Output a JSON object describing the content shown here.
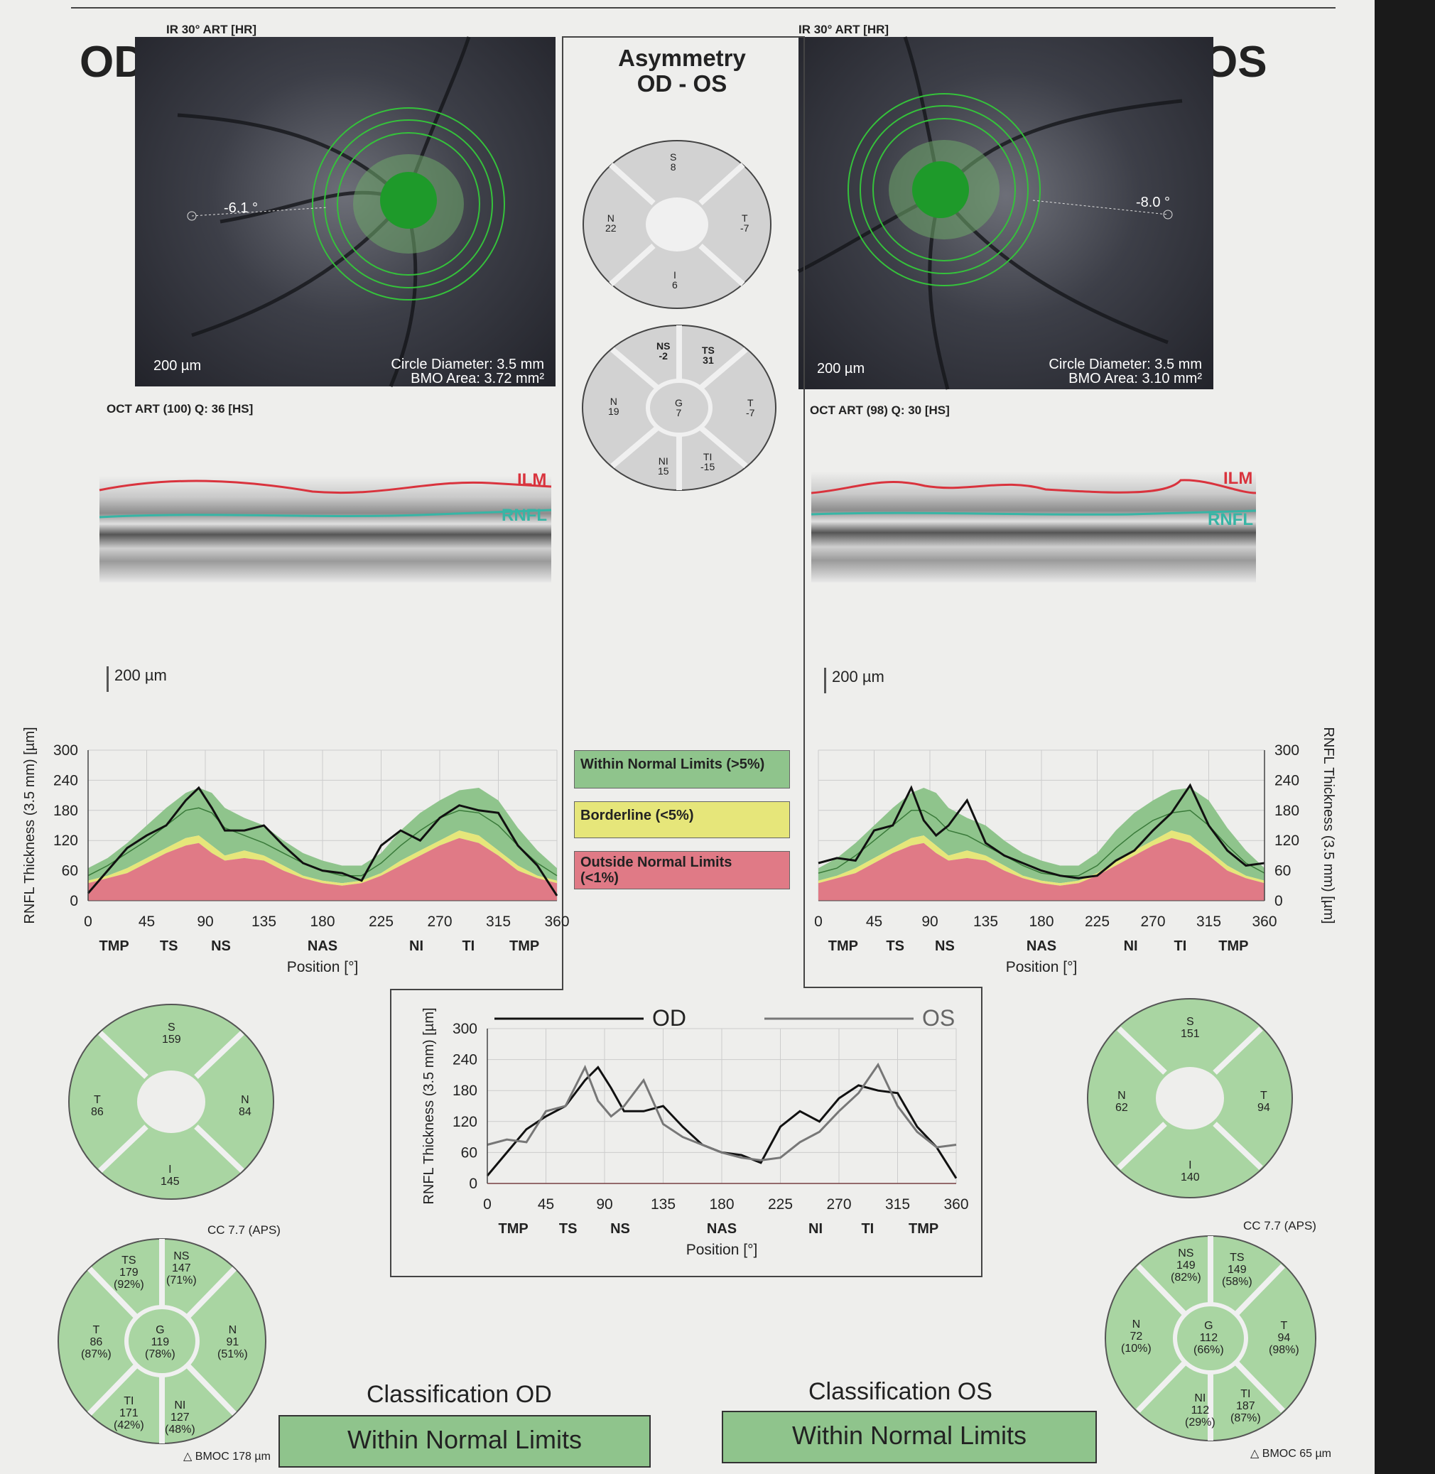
{
  "od": {
    "eye_label": "OD",
    "ir_header": "IR 30° ART [HR]",
    "angle": "-6.1 °",
    "scale": "200 µm",
    "circle_diameter": "Circle Diameter: 3.5 mm",
    "bmo_area": "BMO Area: 3.72 mm²",
    "oct_header": "OCT ART (100) Q: 36 [HS]",
    "ilm": "ILM",
    "rnfl": "RNFL",
    "bscan_scale": "200 µm",
    "sectors": {
      "S": "159",
      "T": "86",
      "N": "84",
      "I": "145"
    },
    "cc_label": "CC 7.7 (APS)",
    "sectors6": {
      "TS": [
        "TS",
        "179",
        "(92%)"
      ],
      "NS": [
        "NS",
        "147",
        "(71%)"
      ],
      "T": [
        "T",
        "86",
        "(87%)"
      ],
      "G": [
        "G",
        "119",
        "(78%)"
      ],
      "N": [
        "N",
        "91",
        "(51%)"
      ],
      "TI": [
        "TI",
        "171",
        "(42%)"
      ],
      "NI": [
        "NI",
        "127",
        "(48%)"
      ]
    },
    "bmoc": "BMOC 178 µm",
    "classification_title": "Classification OD",
    "classification": "Within Normal Limits"
  },
  "os": {
    "eye_label": "OS",
    "ir_header": "IR 30° ART [HR]",
    "angle": "-8.0 °",
    "scale": "200 µm",
    "circle_diameter": "Circle Diameter: 3.5 mm",
    "bmo_area": "BMO Area: 3.10 mm²",
    "oct_header": "OCT ART (98) Q: 30 [HS]",
    "ilm": "ILM",
    "rnfl": "RNFL",
    "bscan_scale": "200 µm",
    "sectors": {
      "S": "151",
      "N": "62",
      "T": "94",
      "I": "140"
    },
    "cc_label": "CC 7.7 (APS)",
    "sectors6": {
      "NS": [
        "NS",
        "149",
        "(82%)"
      ],
      "TS": [
        "TS",
        "149",
        "(58%)"
      ],
      "N": [
        "N",
        "72",
        "(10%)"
      ],
      "G": [
        "G",
        "112",
        "(66%)"
      ],
      "T": [
        "T",
        "94",
        "(98%)"
      ],
      "NI": [
        "NI",
        "112",
        "(29%)"
      ],
      "TI": [
        "TI",
        "187",
        "(87%)"
      ]
    },
    "bmoc": "BMOC 65 µm",
    "classification_title": "Classification OS",
    "classification": "Within Normal Limits"
  },
  "asymmetry": {
    "title_line1": "Asymmetry",
    "title_line2": "OD - OS",
    "sectors4": {
      "S": "8",
      "N": "22",
      "T": "-7",
      "I": "6"
    },
    "sectors6": {
      "NS": "-2",
      "TS": "31",
      "N": "19",
      "G": "7",
      "T": "-7",
      "NI": "15",
      "TI": "-15"
    }
  },
  "legend": {
    "within": "Within Normal Limits (>5%)",
    "borderline": "Borderline (<5%)",
    "outside_line1": "Outside Normal Limits",
    "outside_line2": "(<1%)"
  },
  "colors": {
    "within": "#8fc48c",
    "borderline": "#e6e67a",
    "outside": "#e07a86",
    "sector_fill": "#a9d5a2",
    "asym_fill": "#d2d2d2",
    "ilm": "#d9333d",
    "rnfl": "#37b5a5"
  },
  "chart_data": [
    {
      "type": "line",
      "id": "od",
      "ylabel": "RNFL Thickness (3.5 mm) [µm]",
      "xlabel": "Position [°]",
      "xlim": [
        0,
        360
      ],
      "ylim": [
        0,
        300
      ],
      "xticks": [
        0,
        45,
        90,
        135,
        180,
        225,
        270,
        315,
        360
      ],
      "yticks": [
        0,
        60,
        120,
        180,
        240,
        300
      ],
      "sector_labels": [
        {
          "label": "TMP",
          "x": 20
        },
        {
          "label": "TS",
          "x": 62
        },
        {
          "label": "NS",
          "x": 102
        },
        {
          "label": "NAS",
          "x": 180
        },
        {
          "label": "NI",
          "x": 252
        },
        {
          "label": "TI",
          "x": 292
        },
        {
          "label": "TMP",
          "x": 335
        }
      ],
      "x": [
        0,
        15,
        30,
        45,
        60,
        75,
        85,
        95,
        105,
        120,
        135,
        150,
        165,
        180,
        195,
        210,
        225,
        240,
        255,
        270,
        285,
        300,
        315,
        330,
        345,
        360
      ],
      "series": [
        {
          "values": [
            15,
            60,
            105,
            130,
            150,
            200,
            225,
            185,
            140,
            140,
            150,
            110,
            75,
            60,
            55,
            40,
            110,
            140,
            120,
            165,
            190,
            180,
            175,
            110,
            70,
            10
          ]
        }
      ],
      "norm_mean": [
        50,
        70,
        95,
        120,
        150,
        180,
        185,
        175,
        145,
        130,
        115,
        95,
        75,
        60,
        50,
        50,
        75,
        110,
        140,
        165,
        180,
        175,
        150,
        110,
        75,
        50
      ],
      "p5": [
        40,
        50,
        65,
        85,
        105,
        125,
        130,
        110,
        90,
        100,
        90,
        70,
        50,
        40,
        35,
        40,
        55,
        80,
        100,
        120,
        140,
        130,
        100,
        70,
        50,
        40
      ],
      "p1": [
        35,
        45,
        55,
        75,
        95,
        110,
        115,
        95,
        80,
        85,
        80,
        60,
        45,
        35,
        30,
        35,
        50,
        70,
        90,
        110,
        125,
        115,
        90,
        60,
        45,
        35
      ],
      "p95": [
        65,
        85,
        115,
        150,
        185,
        215,
        225,
        215,
        185,
        165,
        150,
        120,
        95,
        80,
        70,
        70,
        95,
        140,
        175,
        200,
        220,
        225,
        200,
        145,
        100,
        65
      ]
    },
    {
      "type": "line",
      "id": "os",
      "ylabel": "RNFL Thickness (3.5 mm) [µm]",
      "xlabel": "Position [°]",
      "xlim": [
        0,
        360
      ],
      "ylim": [
        0,
        300
      ],
      "xticks": [
        0,
        45,
        90,
        135,
        180,
        225,
        270,
        315,
        360
      ],
      "yticks": [
        0,
        60,
        120,
        180,
        240,
        300
      ],
      "sector_labels": [
        {
          "label": "TMP",
          "x": 20
        },
        {
          "label": "TS",
          "x": 62
        },
        {
          "label": "NS",
          "x": 102
        },
        {
          "label": "NAS",
          "x": 180
        },
        {
          "label": "NI",
          "x": 252
        },
        {
          "label": "TI",
          "x": 292
        },
        {
          "label": "TMP",
          "x": 335
        }
      ],
      "x": [
        0,
        15,
        30,
        45,
        60,
        75,
        85,
        95,
        105,
        120,
        135,
        150,
        165,
        180,
        195,
        210,
        225,
        240,
        255,
        270,
        285,
        300,
        315,
        330,
        345,
        360
      ],
      "series": [
        {
          "values": [
            75,
            85,
            80,
            140,
            150,
            225,
            160,
            130,
            150,
            200,
            115,
            90,
            75,
            60,
            50,
            45,
            50,
            80,
            100,
            140,
            175,
            230,
            150,
            100,
            70,
            75
          ]
        }
      ],
      "norm_mean": [
        55,
        65,
        90,
        120,
        150,
        180,
        180,
        165,
        140,
        130,
        110,
        90,
        70,
        55,
        50,
        50,
        70,
        105,
        135,
        160,
        175,
        180,
        150,
        110,
        75,
        55
      ],
      "p5": [
        40,
        50,
        65,
        85,
        105,
        125,
        130,
        110,
        90,
        100,
        90,
        70,
        50,
        40,
        35,
        40,
        55,
        80,
        100,
        120,
        140,
        130,
        100,
        70,
        50,
        40
      ],
      "p1": [
        35,
        45,
        55,
        75,
        95,
        110,
        115,
        95,
        80,
        85,
        80,
        60,
        45,
        35,
        30,
        35,
        50,
        70,
        90,
        110,
        125,
        115,
        90,
        60,
        45,
        35
      ],
      "p95": [
        65,
        85,
        115,
        150,
        185,
        215,
        225,
        215,
        185,
        165,
        150,
        120,
        95,
        80,
        70,
        70,
        95,
        140,
        175,
        200,
        220,
        225,
        200,
        145,
        100,
        65
      ]
    },
    {
      "type": "line",
      "id": "compare",
      "ylabel": "RNFL Thickness (3.5 mm) [µm]",
      "xlabel": "Position [°]",
      "xlim": [
        0,
        360
      ],
      "ylim": [
        0,
        300
      ],
      "xticks": [
        0,
        45,
        90,
        135,
        180,
        225,
        270,
        315,
        360
      ],
      "yticks": [
        0,
        60,
        120,
        180,
        240,
        300
      ],
      "sector_labels": [
        {
          "label": "TMP",
          "x": 20
        },
        {
          "label": "TS",
          "x": 62
        },
        {
          "label": "NS",
          "x": 102
        },
        {
          "label": "NAS",
          "x": 180
        },
        {
          "label": "NI",
          "x": 252
        },
        {
          "label": "TI",
          "x": 292
        },
        {
          "label": "TMP",
          "x": 335
        }
      ],
      "x": [
        0,
        15,
        30,
        45,
        60,
        75,
        85,
        95,
        105,
        120,
        135,
        150,
        165,
        180,
        195,
        210,
        225,
        240,
        255,
        270,
        285,
        300,
        315,
        330,
        345,
        360
      ],
      "series": [
        {
          "name": "OD",
          "color": "#111111",
          "values": [
            15,
            60,
            105,
            130,
            150,
            200,
            225,
            185,
            140,
            140,
            150,
            110,
            75,
            60,
            55,
            40,
            110,
            140,
            120,
            165,
            190,
            180,
            175,
            110,
            70,
            10
          ]
        },
        {
          "name": "OS",
          "color": "#777777",
          "values": [
            75,
            85,
            80,
            140,
            150,
            225,
            160,
            130,
            150,
            200,
            115,
            90,
            75,
            60,
            50,
            45,
            50,
            80,
            100,
            140,
            175,
            230,
            150,
            100,
            70,
            75
          ]
        }
      ]
    }
  ]
}
